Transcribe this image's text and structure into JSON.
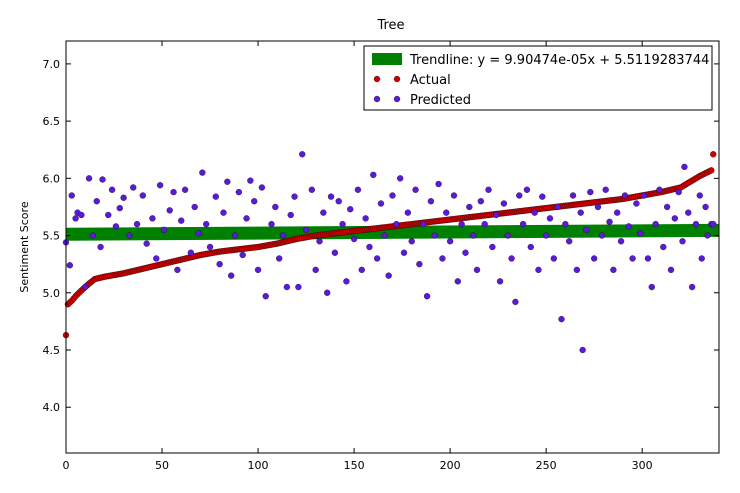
{
  "chart_data": {
    "type": "scatter",
    "title": "Tree",
    "xlabel": "",
    "ylabel": "Sentiment Score",
    "xlim": [
      0,
      340
    ],
    "ylim": [
      3.6,
      7.2
    ],
    "x_ticks": [
      0,
      50,
      100,
      150,
      200,
      250,
      300
    ],
    "y_ticks": [
      4.0,
      4.5,
      5.0,
      5.5,
      6.0,
      6.5,
      7.0
    ],
    "legend_position": "top-right",
    "grid": false,
    "n_points": 338,
    "trendline": {
      "label": "Trendline: y = 9.90474e-05x + 5.5119283744",
      "slope": 9.90474e-05,
      "intercept": 5.5119283744,
      "color": "#008000"
    },
    "series": [
      {
        "name": "Actual",
        "color": "#cc0000",
        "profile_x": [
          0,
          1,
          3,
          5,
          8,
          12,
          15,
          20,
          30,
          40,
          50,
          60,
          70,
          80,
          90,
          100,
          110,
          120,
          130,
          140,
          150,
          160,
          170,
          180,
          190,
          200,
          210,
          220,
          230,
          240,
          250,
          260,
          270,
          280,
          290,
          300,
          310,
          320,
          330,
          336,
          337
        ],
        "profile_y": [
          4.63,
          4.9,
          4.93,
          4.97,
          5.02,
          5.08,
          5.12,
          5.14,
          5.17,
          5.21,
          5.25,
          5.29,
          5.33,
          5.36,
          5.38,
          5.4,
          5.43,
          5.47,
          5.5,
          5.52,
          5.54,
          5.56,
          5.58,
          5.6,
          5.62,
          5.64,
          5.66,
          5.68,
          5.7,
          5.72,
          5.74,
          5.76,
          5.78,
          5.8,
          5.82,
          5.85,
          5.88,
          5.92,
          6.02,
          6.07,
          6.21
        ]
      },
      {
        "name": "Predicted",
        "color": "#5a1ad8",
        "points": [
          [
            0,
            5.44
          ],
          [
            2,
            5.24
          ],
          [
            3,
            5.85
          ],
          [
            5,
            5.65
          ],
          [
            6,
            5.7
          ],
          [
            8,
            5.68
          ],
          [
            10,
            5.05
          ],
          [
            12,
            6.0
          ],
          [
            14,
            5.5
          ],
          [
            16,
            5.8
          ],
          [
            18,
            5.4
          ],
          [
            19,
            5.99
          ],
          [
            22,
            5.68
          ],
          [
            24,
            5.9
          ],
          [
            26,
            5.58
          ],
          [
            28,
            5.74
          ],
          [
            30,
            5.83
          ],
          [
            33,
            5.5
          ],
          [
            35,
            5.92
          ],
          [
            37,
            5.6
          ],
          [
            40,
            5.85
          ],
          [
            42,
            5.43
          ],
          [
            45,
            5.65
          ],
          [
            47,
            5.3
          ],
          [
            49,
            5.94
          ],
          [
            51,
            5.55
          ],
          [
            54,
            5.72
          ],
          [
            56,
            5.88
          ],
          [
            58,
            5.2
          ],
          [
            60,
            5.63
          ],
          [
            62,
            5.9
          ],
          [
            65,
            5.35
          ],
          [
            67,
            5.75
          ],
          [
            69,
            5.52
          ],
          [
            71,
            6.05
          ],
          [
            73,
            5.6
          ],
          [
            75,
            5.4
          ],
          [
            78,
            5.84
          ],
          [
            80,
            5.25
          ],
          [
            82,
            5.7
          ],
          [
            84,
            5.97
          ],
          [
            86,
            5.15
          ],
          [
            88,
            5.5
          ],
          [
            90,
            5.88
          ],
          [
            92,
            5.33
          ],
          [
            94,
            5.65
          ],
          [
            96,
            5.98
          ],
          [
            98,
            5.8
          ],
          [
            100,
            5.2
          ],
          [
            102,
            5.92
          ],
          [
            104,
            4.97
          ],
          [
            107,
            5.6
          ],
          [
            109,
            5.75
          ],
          [
            111,
            5.3
          ],
          [
            113,
            5.5
          ],
          [
            115,
            5.05
          ],
          [
            117,
            5.68
          ],
          [
            119,
            5.84
          ],
          [
            121,
            5.05
          ],
          [
            123,
            6.21
          ],
          [
            125,
            5.55
          ],
          [
            128,
            5.9
          ],
          [
            130,
            5.2
          ],
          [
            132,
            5.45
          ],
          [
            134,
            5.7
          ],
          [
            136,
            5.0
          ],
          [
            138,
            5.84
          ],
          [
            140,
            5.35
          ],
          [
            142,
            5.8
          ],
          [
            144,
            5.6
          ],
          [
            146,
            5.1
          ],
          [
            148,
            5.73
          ],
          [
            150,
            5.47
          ],
          [
            152,
            5.9
          ],
          [
            154,
            5.2
          ],
          [
            156,
            5.65
          ],
          [
            158,
            5.4
          ],
          [
            160,
            6.03
          ],
          [
            162,
            5.3
          ],
          [
            164,
            5.78
          ],
          [
            166,
            5.5
          ],
          [
            168,
            5.15
          ],
          [
            170,
            5.85
          ],
          [
            172,
            5.6
          ],
          [
            174,
            6.0
          ],
          [
            176,
            5.35
          ],
          [
            178,
            5.7
          ],
          [
            180,
            5.45
          ],
          [
            182,
            5.9
          ],
          [
            184,
            5.25
          ],
          [
            186,
            5.6
          ],
          [
            188,
            4.97
          ],
          [
            190,
            5.8
          ],
          [
            192,
            5.5
          ],
          [
            194,
            5.95
          ],
          [
            196,
            5.3
          ],
          [
            198,
            5.7
          ],
          [
            200,
            5.45
          ],
          [
            202,
            5.85
          ],
          [
            204,
            5.1
          ],
          [
            206,
            5.6
          ],
          [
            208,
            5.35
          ],
          [
            210,
            5.75
          ],
          [
            212,
            5.5
          ],
          [
            214,
            5.2
          ],
          [
            216,
            5.8
          ],
          [
            218,
            5.6
          ],
          [
            220,
            5.9
          ],
          [
            222,
            5.4
          ],
          [
            224,
            5.68
          ],
          [
            226,
            5.1
          ],
          [
            228,
            5.78
          ],
          [
            230,
            5.5
          ],
          [
            232,
            5.3
          ],
          [
            234,
            4.92
          ],
          [
            236,
            5.85
          ],
          [
            238,
            5.6
          ],
          [
            240,
            5.9
          ],
          [
            242,
            5.4
          ],
          [
            244,
            5.7
          ],
          [
            246,
            5.2
          ],
          [
            248,
            5.84
          ],
          [
            250,
            5.5
          ],
          [
            252,
            5.65
          ],
          [
            254,
            5.3
          ],
          [
            256,
            5.75
          ],
          [
            258,
            4.77
          ],
          [
            260,
            5.6
          ],
          [
            262,
            5.45
          ],
          [
            264,
            5.85
          ],
          [
            266,
            5.2
          ],
          [
            268,
            5.7
          ],
          [
            269,
            4.5
          ],
          [
            271,
            5.55
          ],
          [
            273,
            5.88
          ],
          [
            275,
            5.3
          ],
          [
            277,
            5.75
          ],
          [
            279,
            5.5
          ],
          [
            281,
            5.9
          ],
          [
            283,
            5.62
          ],
          [
            285,
            5.2
          ],
          [
            287,
            5.7
          ],
          [
            289,
            5.45
          ],
          [
            291,
            5.85
          ],
          [
            293,
            5.58
          ],
          [
            295,
            5.3
          ],
          [
            297,
            5.78
          ],
          [
            299,
            5.52
          ],
          [
            301,
            5.85
          ],
          [
            303,
            5.3
          ],
          [
            305,
            5.05
          ],
          [
            307,
            5.6
          ],
          [
            309,
            5.9
          ],
          [
            311,
            5.4
          ],
          [
            313,
            5.75
          ],
          [
            315,
            5.2
          ],
          [
            317,
            5.65
          ],
          [
            319,
            5.88
          ],
          [
            321,
            5.45
          ],
          [
            322,
            6.1
          ],
          [
            324,
            5.7
          ],
          [
            326,
            5.05
          ],
          [
            328,
            5.6
          ],
          [
            330,
            5.85
          ],
          [
            331,
            5.3
          ],
          [
            333,
            5.75
          ],
          [
            334,
            5.5
          ],
          [
            336,
            5.6
          ],
          [
            337,
            5.6
          ]
        ]
      }
    ]
  }
}
